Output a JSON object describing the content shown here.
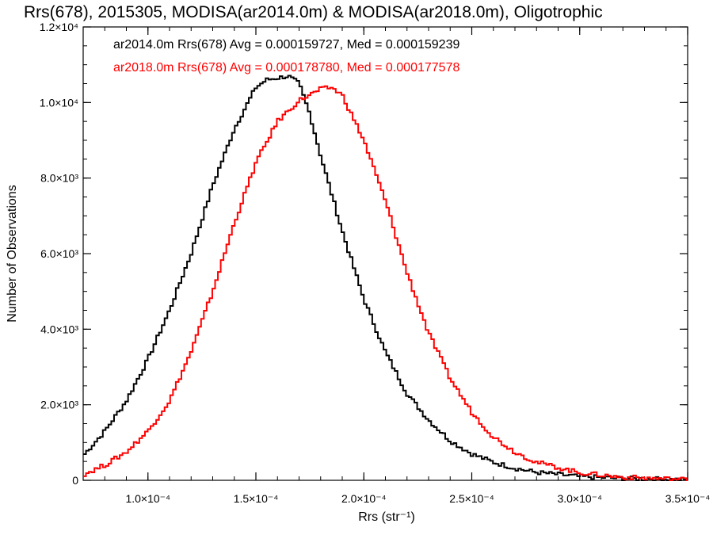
{
  "chart_data": {
    "type": "line",
    "title": "Rrs(678), 2015305, MODISA(ar2014.0m) & MODISA(ar2018.0m), Oligotrophic",
    "xlabel": "Rrs (str⁻¹)",
    "ylabel": "Number of Observations",
    "xlim": [
      7e-05,
      0.00035
    ],
    "ylim": [
      0,
      12000
    ],
    "x_ticks": [
      {
        "value": 0.0001,
        "label": "1.0×10⁻⁴"
      },
      {
        "value": 0.00015,
        "label": "1.5×10⁻⁴"
      },
      {
        "value": 0.0002,
        "label": "2.0×10⁻⁴"
      },
      {
        "value": 0.00025,
        "label": "2.5×10⁻⁴"
      },
      {
        "value": 0.0003,
        "label": "3.0×10⁻⁴"
      },
      {
        "value": 0.00035,
        "label": "3.5×10⁻⁴"
      }
    ],
    "y_ticks": [
      {
        "value": 0,
        "label": "0"
      },
      {
        "value": 2000,
        "label": "2.0×10³"
      },
      {
        "value": 4000,
        "label": "4.0×10³"
      },
      {
        "value": 6000,
        "label": "6.0×10³"
      },
      {
        "value": 8000,
        "label": "8.0×10³"
      },
      {
        "value": 10000,
        "label": "1.0×10⁴"
      },
      {
        "value": 12000,
        "label": "1.2×10⁴"
      }
    ],
    "grid": false,
    "legend_position": "top-left",
    "series": [
      {
        "label": "ar2014.0m Rrs(678) Avg = 0.000159727, Med = 0.000159239",
        "color": "#000000",
        "x": [
          7e-05,
          8e-05,
          9e-05,
          0.0001,
          0.00011,
          0.00012,
          0.00013,
          0.00014,
          0.00015,
          0.000155,
          0.00016,
          0.000165,
          0.00017,
          0.000175,
          0.00018,
          0.00019,
          0.0002,
          0.00021,
          0.00022,
          0.00023,
          0.00024,
          0.00025,
          0.00026,
          0.00027,
          0.00028,
          0.0003,
          0.00032,
          0.00035
        ],
        "y": [
          650,
          1300,
          2100,
          3200,
          4500,
          6000,
          7800,
          9300,
          10400,
          10600,
          10650,
          10700,
          10500,
          9700,
          8600,
          6600,
          4800,
          3400,
          2300,
          1600,
          1050,
          700,
          480,
          320,
          210,
          100,
          50,
          15
        ]
      },
      {
        "label": "ar2018.0m Rrs(678) Avg = 0.000178780, Med = 0.000177578",
        "color": "#ff0000",
        "x": [
          7e-05,
          8e-05,
          9e-05,
          0.0001,
          0.00011,
          0.00012,
          0.00013,
          0.00014,
          0.00015,
          0.00016,
          0.00017,
          0.000175,
          0.00018,
          0.000185,
          0.00019,
          0.0002,
          0.00021,
          0.00022,
          0.00023,
          0.00024,
          0.00025,
          0.00026,
          0.00027,
          0.00028,
          0.0003,
          0.00032,
          0.00035
        ],
        "y": [
          150,
          400,
          750,
          1300,
          2100,
          3400,
          5000,
          6800,
          8400,
          9500,
          10050,
          10200,
          10350,
          10400,
          10200,
          9000,
          7400,
          5500,
          3900,
          2700,
          1800,
          1150,
          750,
          480,
          200,
          80,
          20
        ]
      }
    ]
  }
}
